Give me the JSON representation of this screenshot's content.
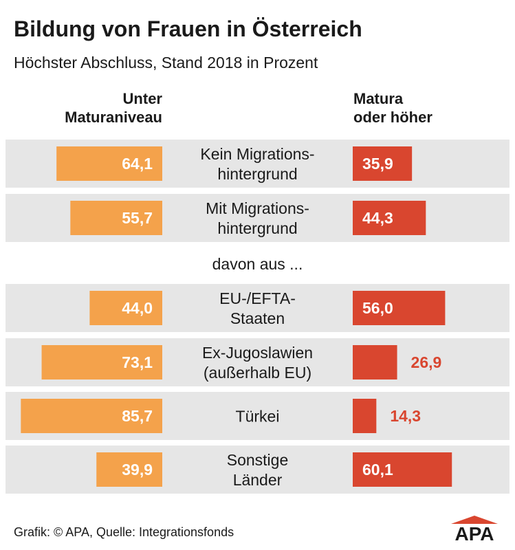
{
  "chart_data": {
    "type": "bar",
    "title": "Bildung von Frauen in Österreich",
    "subtitle": "Höchster Abschluss, Stand 2018 in Prozent",
    "series": [
      {
        "name": "Unter\nMaturaniveau",
        "color": "#f4a24b"
      },
      {
        "name": "Matura\noder höher",
        "color": "#d9462f"
      }
    ],
    "rows": [
      {
        "label": "Kein Migrations-\nhintergrund",
        "unter": 64.1,
        "unter_label": "64,1",
        "matura": 35.9,
        "matura_label": "35,9"
      },
      {
        "label": "Mit Migrations-\nhintergrund",
        "unter": 55.7,
        "unter_label": "55,7",
        "matura": 44.3,
        "matura_label": "44,3"
      },
      {
        "label": "EU-/EFTA-\nStaaten",
        "unter": 44.0,
        "unter_label": "44,0",
        "matura": 56.0,
        "matura_label": "56,0"
      },
      {
        "label": "Ex-Jugoslawien\n(außerhalb EU)",
        "unter": 73.1,
        "unter_label": "73,1",
        "matura": 26.9,
        "matura_label": "26,9"
      },
      {
        "label": "Türkei",
        "unter": 85.7,
        "unter_label": "85,7",
        "matura": 14.3,
        "matura_label": "14,3"
      },
      {
        "label": "Sonstige\nLänder",
        "unter": 39.9,
        "unter_label": "39,9",
        "matura": 60.1,
        "matura_label": "60,1"
      }
    ],
    "separator_label": "davon aus ...",
    "scale_max": 100
  },
  "footer": "Grafik: © APA, Quelle: Integrationsfonds",
  "logo_text": "APA",
  "colors": {
    "row_background": "#e6e6e6",
    "label_inside": "#ffffff",
    "label_outside": "#d9462f"
  }
}
